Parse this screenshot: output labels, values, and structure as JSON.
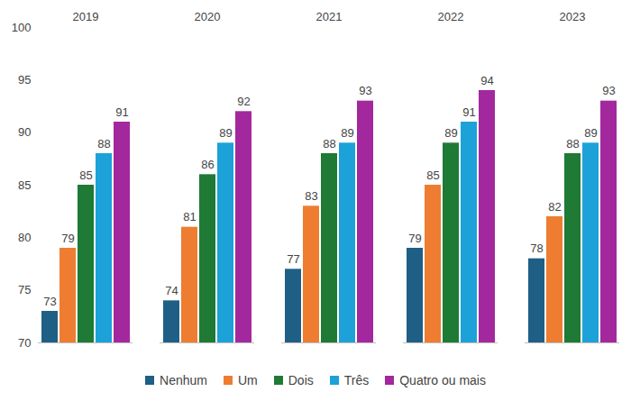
{
  "chart_data": {
    "type": "bar",
    "categories": [
      "2019",
      "2020",
      "2021",
      "2022",
      "2023"
    ],
    "series": [
      {
        "name": "Nenhum",
        "color": "#1f5f86",
        "values": [
          73,
          74,
          77,
          79,
          78
        ]
      },
      {
        "name": "Um",
        "color": "#ee7d31",
        "values": [
          79,
          81,
          83,
          85,
          82
        ]
      },
      {
        "name": "Dois",
        "color": "#1e7a35",
        "values": [
          85,
          86,
          88,
          89,
          88
        ]
      },
      {
        "name": "Três",
        "color": "#1ca2d8",
        "values": [
          88,
          89,
          89,
          91,
          89
        ]
      },
      {
        "name": "Quatro ou mais",
        "color": "#a3289e",
        "values": [
          91,
          92,
          93,
          94,
          93
        ]
      }
    ],
    "ylim": [
      70,
      100
    ],
    "yticks": [
      70,
      75,
      80,
      85,
      90,
      95,
      100
    ],
    "grid": false,
    "data_labels": true,
    "legend": "bottom"
  }
}
